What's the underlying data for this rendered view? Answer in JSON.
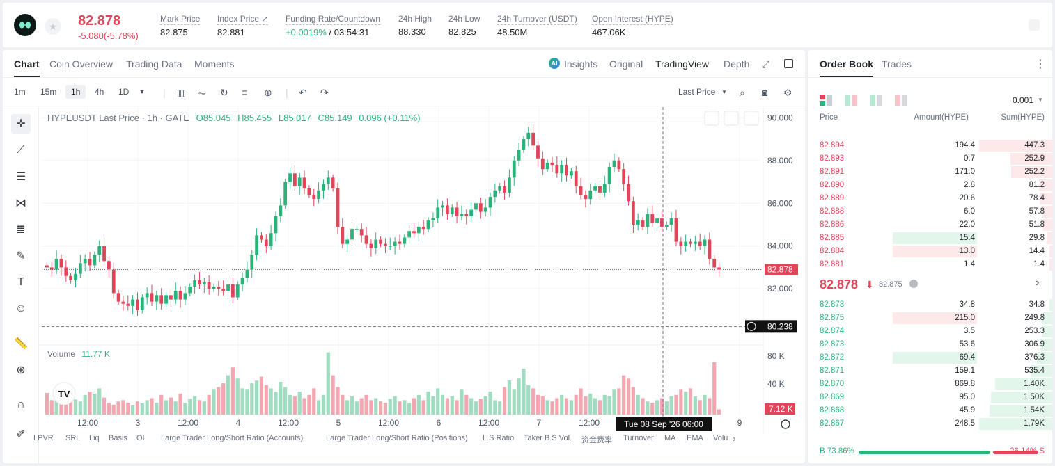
{
  "header": {
    "last_price": "82.878",
    "change": "-5.080(-5.78%)",
    "stats": [
      {
        "label": "Mark Price",
        "value": "82.875"
      },
      {
        "label": "Index Price ↗",
        "value": "82.881"
      },
      {
        "label": "Funding Rate/Countdown",
        "value_green": "+0.0019%",
        "value": " / 03:54:31"
      },
      {
        "label": "24h High",
        "value": "88.330"
      },
      {
        "label": "24h Low",
        "value": "82.825"
      },
      {
        "label": "24h Turnover (USDT)",
        "value": "48.50M"
      },
      {
        "label": "Open Interest (HYPE)",
        "value": "467.06K"
      }
    ]
  },
  "chart_tabs": {
    "chart": "Chart",
    "coin_overview": "Coin Overview",
    "trading_data": "Trading Data",
    "moments": "Moments"
  },
  "view_tabs": {
    "insights": "Insights",
    "original": "Original",
    "tradingview": "TradingView",
    "depth": "Depth"
  },
  "timeframes": [
    "1m",
    "15m",
    "1h",
    "4h",
    "1D"
  ],
  "price_source": "Last Price",
  "legend": {
    "title": "HYPEUSDT Last Price · 1h · GATE",
    "o": "O85.045",
    "h": "H85.455",
    "l": "L85.017",
    "c": "C85.149",
    "chg": "0.096 (+0.11%)",
    "volume_label": "Volume",
    "volume_value": "11.77 K"
  },
  "chart_data": {
    "type": "candlestick",
    "symbol": "HYPEUSDT",
    "interval": "1h",
    "y_ticks": [
      90.0,
      88.0,
      86.0,
      84.0,
      82.0
    ],
    "y_tick_labels": [
      "90.000",
      "88.000",
      "86.000",
      "84.000",
      "82.000"
    ],
    "ylim": [
      79.5,
      90.5
    ],
    "x_tick_labels": [
      "12:00",
      "3",
      "12:00",
      "4",
      "12:00",
      "5",
      "12:00",
      "6",
      "12:00",
      "7",
      "12:00",
      "9"
    ],
    "last_price_label": "82.878",
    "crosshair_price_label": "80.238",
    "crosshair_time_label": "Tue 08 Sep '26   06:00",
    "volume_ticks": [
      "80 K",
      "40 K"
    ],
    "volume_last_label": "7.12 K",
    "close_path": [
      83.0,
      82.9,
      83.4,
      83.0,
      82.6,
      82.4,
      82.7,
      83.2,
      83.4,
      83.1,
      83.6,
      84.0,
      83.3,
      82.9,
      81.8,
      81.4,
      81.3,
      81.2,
      81.5,
      81.0,
      81.6,
      81.8,
      81.4,
      81.7,
      81.3,
      81.7,
      81.5,
      81.9,
      81.5,
      81.8,
      82.1,
      82.4,
      82.2,
      82.3,
      82.0,
      82.1,
      82.0,
      81.9,
      82.2,
      81.6,
      82.2,
      82.5,
      82.9,
      83.6,
      84.5,
      84.3,
      84.0,
      84.6,
      85.4,
      85.9,
      87.0,
      87.4,
      86.8,
      87.2,
      86.7,
      86.4,
      86.2,
      86.6,
      86.9,
      87.2,
      86.7,
      84.9,
      84.1,
      84.3,
      84.8,
      84.8,
      84.5,
      84.1,
      83.9,
      84.3,
      84.1,
      84.0,
      84.0,
      84.2,
      84.1,
      84.4,
      84.7,
      84.6,
      84.9,
      84.8,
      85.2,
      85.3,
      85.8,
      85.9,
      85.5,
      85.8,
      85.4,
      85.5,
      85.4,
      85.7,
      86.0,
      85.6,
      85.8,
      86.3,
      86.6,
      86.8,
      86.5,
      87.2,
      88.0,
      88.5,
      89.0,
      89.3,
      88.7,
      88.1,
      87.6,
      87.9,
      87.8,
      87.4,
      87.8,
      87.3,
      87.5,
      86.8,
      86.4,
      86.2,
      86.6,
      86.8,
      86.5,
      86.9,
      87.7,
      88.0,
      87.6,
      86.9,
      86.1,
      85.0,
      85.2,
      84.9,
      85.5,
      85.1,
      85.3,
      84.9,
      85.0,
      85.3,
      84.2,
      84.0,
      84.2,
      84.1,
      84.2,
      84.0,
      84.3,
      83.4,
      83.0,
      82.9
    ],
    "volume": [
      33,
      22,
      25,
      18,
      22,
      28,
      23,
      20,
      30,
      35,
      32,
      40,
      26,
      18,
      15,
      20,
      22,
      18,
      14,
      20,
      17,
      22,
      25,
      18,
      30,
      22,
      26,
      20,
      32,
      18,
      24,
      28,
      22,
      20,
      30,
      38,
      42,
      48,
      60,
      72,
      55,
      40,
      38,
      48,
      52,
      58,
      45,
      40,
      35,
      50,
      42,
      30,
      28,
      35,
      25,
      30,
      40,
      22,
      30,
      95,
      60,
      42,
      30,
      22,
      28,
      20,
      25,
      30,
      22,
      25,
      20,
      18,
      24,
      28,
      20,
      22,
      18,
      25,
      30,
      22,
      35,
      28,
      40,
      30,
      25,
      28,
      22,
      38,
      30,
      25,
      20,
      24,
      28,
      35,
      22,
      20,
      42,
      52,
      38,
      55,
      70,
      45,
      40,
      30,
      28,
      22,
      20,
      25,
      30,
      25,
      22,
      30,
      40,
      28,
      32,
      25,
      22,
      30,
      28,
      38,
      40,
      60,
      55,
      42,
      30,
      25,
      20,
      18,
      22,
      25,
      20,
      28,
      30,
      38,
      35,
      40,
      28,
      22,
      30,
      25,
      80,
      8
    ]
  },
  "indicators": [
    "LPVR",
    "SRL",
    "Liq",
    "Basis",
    "OI",
    "Large Trader Long/Short Ratio (Accounts)",
    "Large Trader Long/Short Ratio (Positions)",
    "L.S Ratio",
    "Taker B.S Vol.",
    "资金费率",
    "Turnover",
    "MA",
    "EMA",
    "Volu"
  ],
  "orderbook": {
    "tab_orderbook": "Order Book",
    "tab_trades": "Trades",
    "precision": "0.001",
    "col_price": "Price",
    "col_amount": "Amount(HYPE)",
    "col_sum": "Sum(HYPE)",
    "asks": [
      {
        "price": "82.894",
        "amount": "194.4",
        "sum": "447.3",
        "depth": 1.0
      },
      {
        "price": "82.893",
        "amount": "0.7",
        "sum": "252.9",
        "depth": 0.57
      },
      {
        "price": "82.891",
        "amount": "171.0",
        "sum": "252.2",
        "depth": 0.56
      },
      {
        "price": "82.890",
        "amount": "2.8",
        "sum": "81.2",
        "depth": 0.18
      },
      {
        "price": "82.889",
        "amount": "20.6",
        "sum": "78.4",
        "depth": 0.17
      },
      {
        "price": "82.888",
        "amount": "6.0",
        "sum": "57.8",
        "depth": 0.13
      },
      {
        "price": "82.886",
        "amount": "22.0",
        "sum": "51.8",
        "depth": 0.12
      },
      {
        "price": "82.885",
        "amount": "15.4",
        "sum": "29.8",
        "depth": 0.07
      },
      {
        "price": "82.884",
        "amount": "13.0",
        "sum": "14.4",
        "depth": 0.03
      },
      {
        "price": "82.881",
        "amount": "1.4",
        "sum": "1.4",
        "depth": 0.01
      }
    ],
    "mid_price": "82.878",
    "mid_mark": "82.875",
    "bids": [
      {
        "price": "82.878",
        "amount": "34.8",
        "sum": "34.8",
        "depth": 0.02
      },
      {
        "price": "82.875",
        "amount": "215.0",
        "sum": "249.8",
        "depth": 0.14
      },
      {
        "price": "82.874",
        "amount": "3.5",
        "sum": "253.3",
        "depth": 0.14
      },
      {
        "price": "82.873",
        "amount": "53.6",
        "sum": "306.9",
        "depth": 0.17
      },
      {
        "price": "82.872",
        "amount": "69.4",
        "sum": "376.3",
        "depth": 0.21
      },
      {
        "price": "82.871",
        "amount": "159.1",
        "sum": "535.4",
        "depth": 0.3
      },
      {
        "price": "82.870",
        "amount": "869.8",
        "sum": "1.40K",
        "depth": 0.78
      },
      {
        "price": "82.869",
        "amount": "95.0",
        "sum": "1.50K",
        "depth": 0.84
      },
      {
        "price": "82.868",
        "amount": "45.9",
        "sum": "1.54K",
        "depth": 0.86
      },
      {
        "price": "82.867",
        "amount": "248.5",
        "sum": "1.79K",
        "depth": 1.0
      }
    ],
    "buy_pct_label": "B 73.86%",
    "sell_pct_label": "26.14% S",
    "buy_ratio": 0.7386
  },
  "colors": {
    "up": "#2ab27b",
    "down": "#e0455a"
  }
}
